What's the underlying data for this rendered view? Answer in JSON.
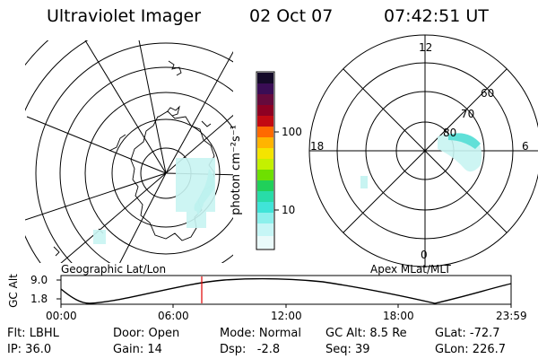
{
  "header": {
    "instrument": "Ultraviolet Imager",
    "date": "02 Oct 07",
    "time": "07:42:51 UT"
  },
  "colorbar": {
    "unit": "photon cm⁻²s⁻¹",
    "ticks": [
      "100",
      "10"
    ],
    "colors": [
      "#1a0a2e",
      "#3d0e5a",
      "#6a0a3a",
      "#8a0020",
      "#c00010",
      "#e03010",
      "#ff7a00",
      "#ffb000",
      "#f0e000",
      "#c8f000",
      "#70e000",
      "#20d060",
      "#30e0c0",
      "#80f0e8",
      "#c8f6f6",
      "#e8fafa"
    ]
  },
  "geo_map": {
    "label": "Geographic Lat/Lon"
  },
  "apex_map": {
    "label": "Apex MLat/MLT",
    "mlt_labels": {
      "top": "12",
      "left": "18",
      "right": "6",
      "bottom": "0"
    },
    "lat_labels": [
      "60",
      "70",
      "80"
    ]
  },
  "altitude_plot": {
    "ylabel": "GC Alt",
    "yticks": [
      "9.0",
      "1.8"
    ],
    "xticks": [
      "00:00",
      "06:00",
      "12:00",
      "18:00",
      "23:59"
    ],
    "current_time_marker": "07:42"
  },
  "info": {
    "flt": "Flt: LBHL",
    "ip": "IP: 36.0",
    "door": "Door: Open",
    "gain": "Gain: 14",
    "mode": "Mode: Normal",
    "dsp": "Dsp:   -2.8",
    "gc_alt": "GC Alt: 8.5 Re",
    "seq": "Seq: 39",
    "glat": "GLat: -72.7",
    "glon": "GLon: 226.7"
  }
}
